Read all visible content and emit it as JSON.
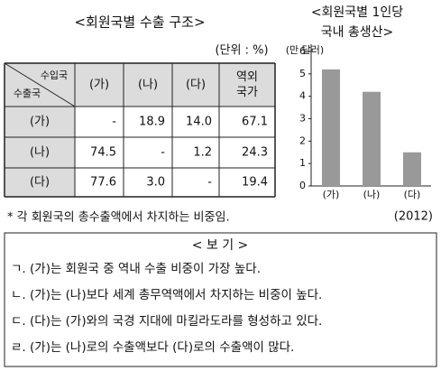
{
  "table": {
    "title": "<회원국별 수출 구조>",
    "unit": "(단위 : %)",
    "corner_top": "수입국",
    "corner_bottom": "수출국",
    "column_headers": [
      [
        "(가)"
      ],
      [
        "(나)"
      ],
      [
        "(다)"
      ],
      [
        "역외",
        "국가"
      ]
    ],
    "rows": [
      {
        "label": "(가)",
        "cells": [
          "-",
          "18.9",
          "14.0",
          "67.1"
        ]
      },
      {
        "label": "(나)",
        "cells": [
          "74.5",
          "-",
          "1.2",
          "24.3"
        ]
      },
      {
        "label": "(다)",
        "cells": [
          "77.6",
          "3.0",
          "-",
          "19.4"
        ]
      }
    ],
    "footnote": "* 각 회원국의 총수출액에서 차지하는 비중임."
  },
  "chart_data": {
    "type": "bar",
    "title": [
      "<회원국별 1인당",
      "국내 총생산>"
    ],
    "y_label": "(만 달러)",
    "categories": [
      "(가)",
      "(나)",
      "(다)"
    ],
    "values": [
      5.2,
      4.2,
      1.5
    ],
    "color": "#999999",
    "ylim": [
      0,
      6
    ],
    "yticks": [
      0,
      1,
      2,
      3,
      4,
      5,
      6
    ],
    "annotation": "(2012)"
  },
  "box": {
    "title": "< 보 기 >",
    "items": [
      "ㄱ. (가)는 회원국 중 역내 수출 비중이 가장 높다.",
      "ㄴ. (가)는 (나)보다 세계 총무역액에서 차지하는 비중이 높다.",
      "ㄷ. (다)는 (가)와의 국경 지대에 마킬라도라를 형성하고 있다.",
      "ㄹ. (가)는 (나)로의 수출액보다 (다)로의 수출액이 많다."
    ]
  }
}
